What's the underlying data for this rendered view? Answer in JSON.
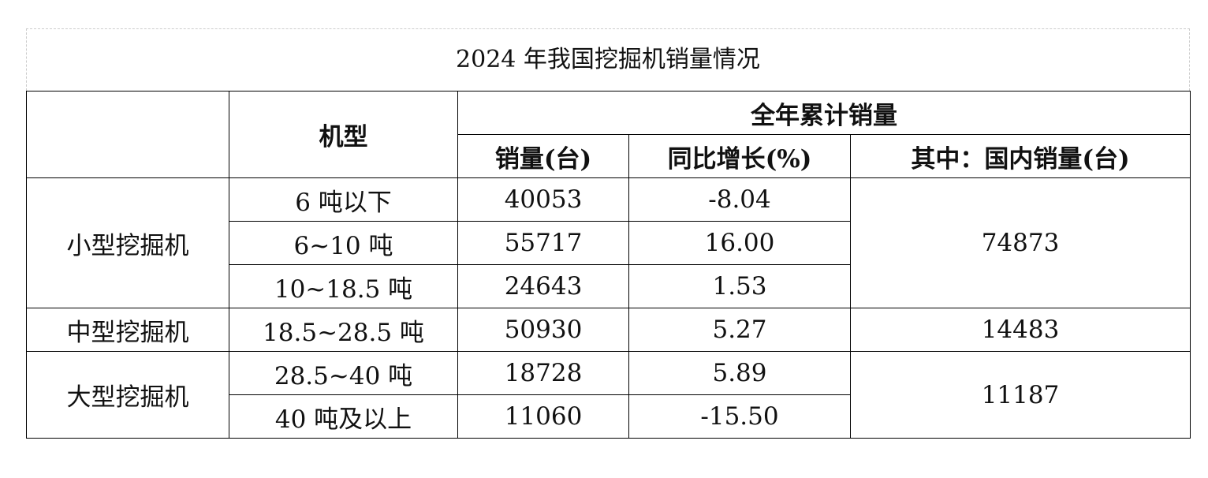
{
  "title": "2024 年我国挖掘机销量情况",
  "header": {
    "model": "机型",
    "cumulative": "全年累计销量",
    "columns": [
      "销量(台)",
      "同比增长(%)",
      "其中：国内销量(台)"
    ]
  },
  "groups": [
    {
      "name": "小型挖掘机",
      "domestic": "74873",
      "rows": [
        {
          "model": "6 吨以下",
          "sales": "40053",
          "yoy": "-8.04"
        },
        {
          "model": "6~10 吨",
          "sales": "55717",
          "yoy": "16.00"
        },
        {
          "model": "10~18.5 吨",
          "sales": "24643",
          "yoy": "1.53"
        }
      ]
    },
    {
      "name": "中型挖掘机",
      "domestic": "14483",
      "rows": [
        {
          "model": "18.5~28.5 吨",
          "sales": "50930",
          "yoy": "5.27"
        }
      ]
    },
    {
      "name": "大型挖掘机",
      "domestic": "11187",
      "rows": [
        {
          "model": "28.5~40 吨",
          "sales": "18728",
          "yoy": "5.89"
        },
        {
          "model": "40 吨及以上",
          "sales": "11060",
          "yoy": "-15.50"
        }
      ]
    }
  ]
}
